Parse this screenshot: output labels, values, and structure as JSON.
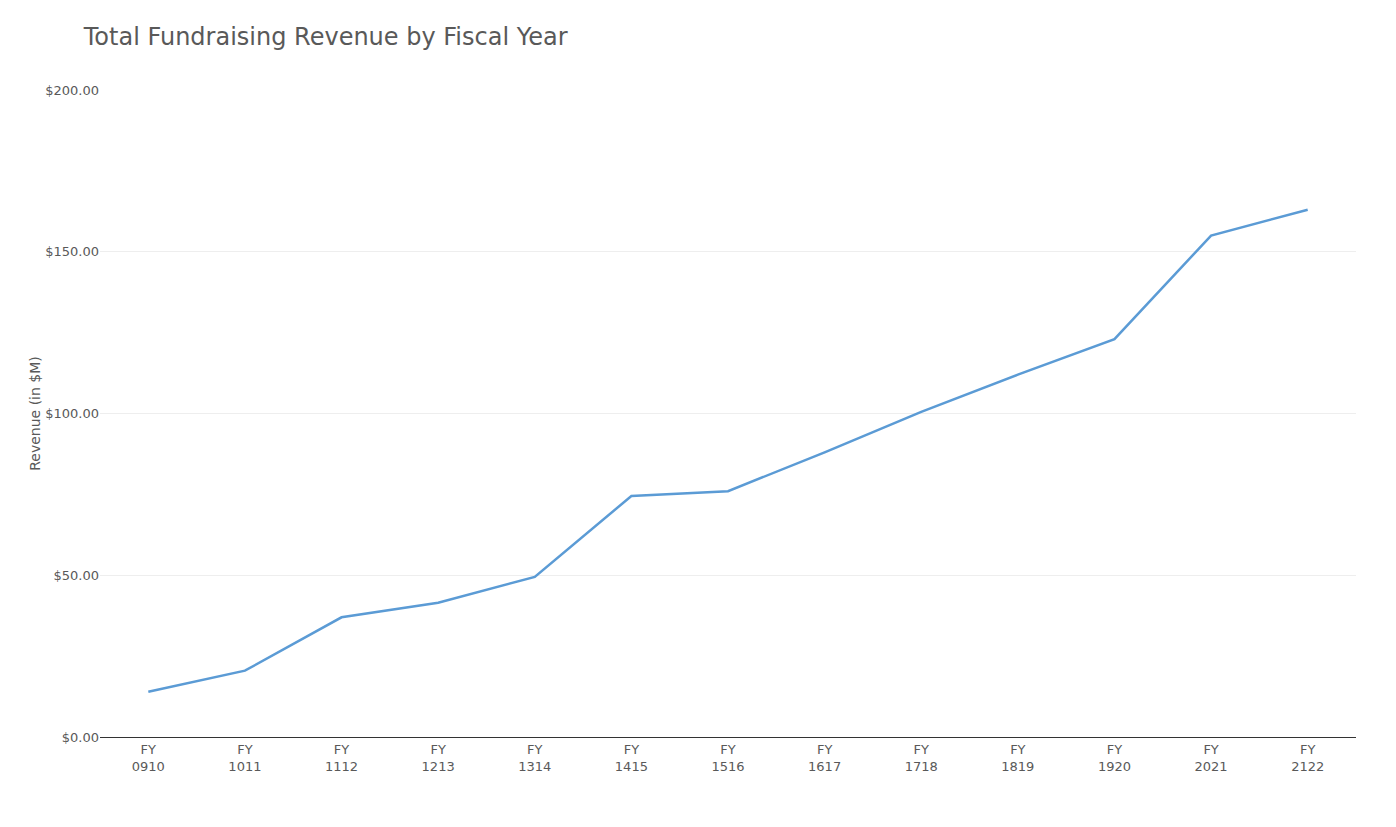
{
  "chart_data": {
    "type": "line",
    "title": "Total Fundraising Revenue by Fiscal Year",
    "ylabel": "Revenue (in $M)",
    "categories": [
      "FY\n0910",
      "FY\n1011",
      "FY\n1112",
      "FY\n1213",
      "FY\n1314",
      "FY\n1415",
      "FY\n1516",
      "FY\n1617",
      "FY\n1718",
      "FY\n1819",
      "FY\n1920",
      "FY\n2021",
      "FY\n2122"
    ],
    "values": [
      14.0,
      20.5,
      37.0,
      41.5,
      49.5,
      74.5,
      76.0,
      88.0,
      100.5,
      112.0,
      123.0,
      155.0,
      163.0
    ],
    "color": "#5b9bd5",
    "ylim": [
      0,
      200
    ],
    "yticks": [
      {
        "value": 0,
        "label": "$0.00"
      },
      {
        "value": 50,
        "label": "$50.00"
      },
      {
        "value": 100,
        "label": "$100.00"
      },
      {
        "value": 150,
        "label": "$150.00"
      },
      {
        "value": 200,
        "label": "$200.00"
      }
    ],
    "grid": true
  }
}
